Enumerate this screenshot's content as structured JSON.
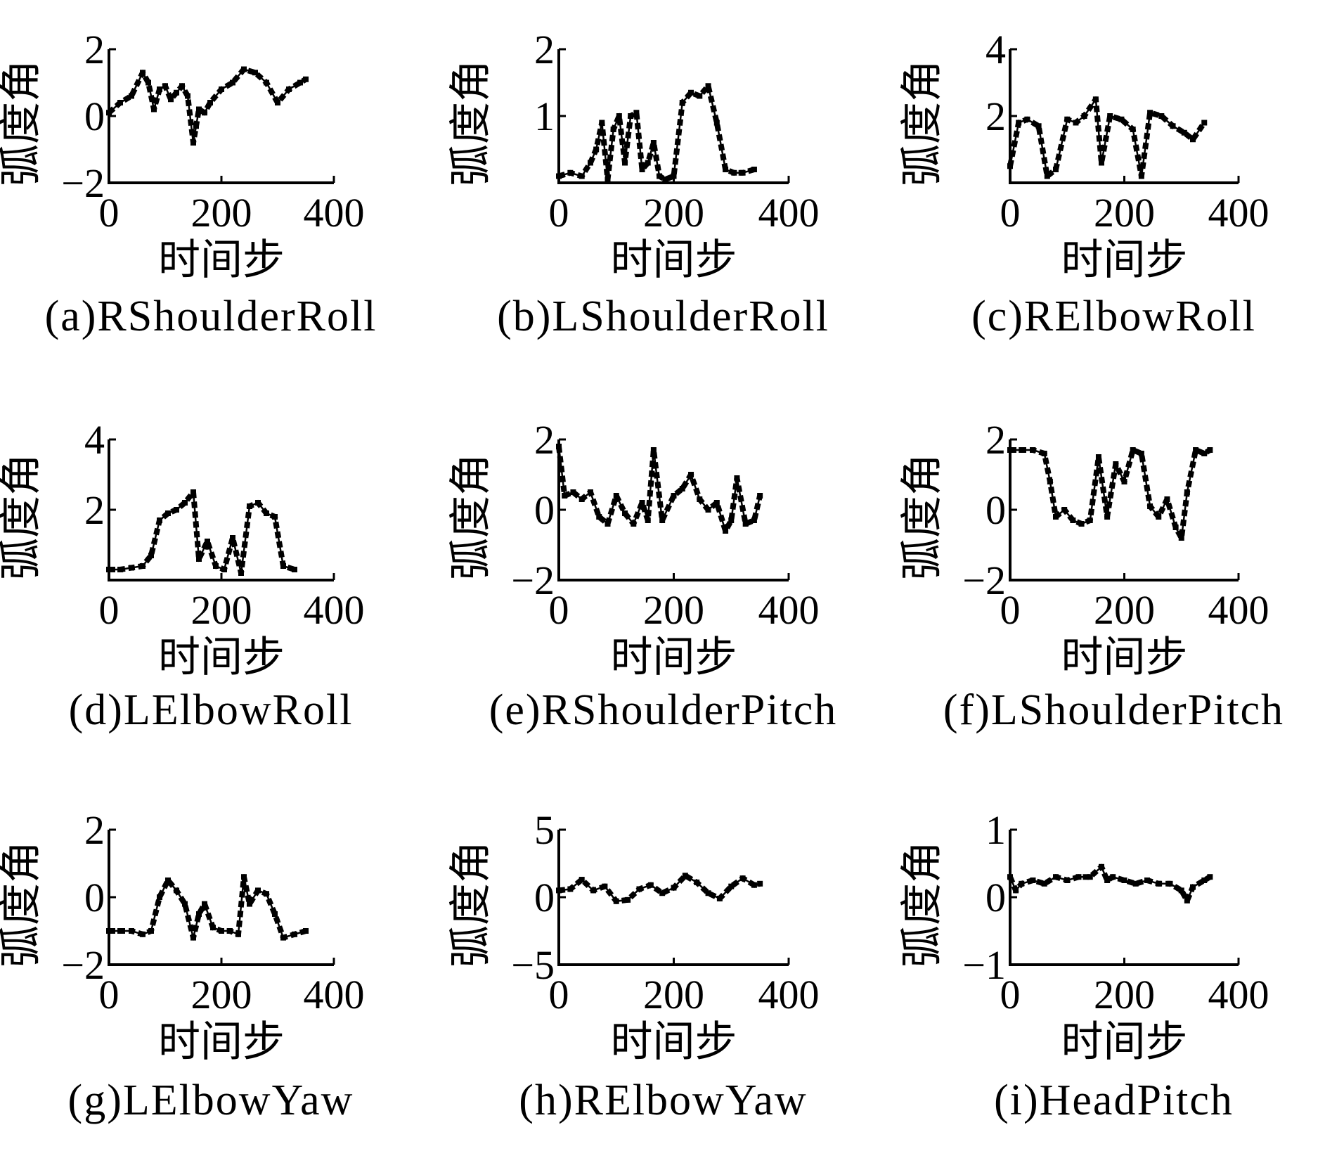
{
  "figure": {
    "ylabel": "弧度角",
    "xlabel": "时间步"
  },
  "chart_data": [
    {
      "type": "line",
      "caption": "(a)RShoulderRoll",
      "xlim": [
        0,
        400
      ],
      "ylim": [
        -2,
        2
      ],
      "xticks": [
        "0",
        "200",
        "400"
      ],
      "yticks": [
        "−2",
        "0",
        "2"
      ],
      "x": [
        0,
        20,
        40,
        60,
        70,
        80,
        90,
        100,
        110,
        120,
        130,
        140,
        150,
        155,
        160,
        170,
        180,
        200,
        220,
        240,
        260,
        280,
        300,
        320,
        340,
        350
      ],
      "series": [
        {
          "values": [
            0.1,
            0.4,
            0.6,
            1.3,
            1.0,
            0.2,
            0.8,
            0.9,
            0.5,
            0.7,
            0.9,
            0.6,
            -0.8,
            -0.3,
            0.2,
            0.1,
            0.4,
            0.8,
            1.0,
            1.4,
            1.3,
            1.0,
            0.4,
            0.8,
            1.0,
            1.1
          ]
        }
      ]
    },
    {
      "type": "line",
      "caption": "(b)LShoulderRoll",
      "xlim": [
        0,
        400
      ],
      "ylim": [
        0,
        2
      ],
      "xticks": [
        "0",
        "200",
        "400"
      ],
      "yticks": [
        "",
        "1",
        "2"
      ],
      "x": [
        0,
        20,
        40,
        55,
        65,
        75,
        85,
        95,
        105,
        115,
        125,
        135,
        145,
        155,
        165,
        175,
        185,
        200,
        215,
        230,
        245,
        260,
        275,
        290,
        305,
        320,
        340
      ],
      "series": [
        {
          "values": [
            0.1,
            0.15,
            0.1,
            0.3,
            0.5,
            0.9,
            0.05,
            0.8,
            1.0,
            0.3,
            1.0,
            1.05,
            0.2,
            0.3,
            0.6,
            0.1,
            0.05,
            0.1,
            1.2,
            1.35,
            1.3,
            1.45,
            0.9,
            0.2,
            0.15,
            0.15,
            0.2
          ]
        }
      ]
    },
    {
      "type": "line",
      "caption": "(c)RElbowRoll",
      "xlim": [
        0,
        400
      ],
      "ylim": [
        0,
        4
      ],
      "xticks": [
        "0",
        "200",
        "400"
      ],
      "yticks": [
        "",
        "2",
        "4"
      ],
      "x": [
        0,
        15,
        30,
        50,
        65,
        80,
        100,
        115,
        130,
        150,
        160,
        175,
        195,
        215,
        230,
        245,
        265,
        285,
        305,
        320,
        340
      ],
      "series": [
        {
          "values": [
            0.5,
            1.8,
            1.9,
            1.7,
            0.2,
            0.4,
            1.9,
            1.8,
            2.0,
            2.5,
            0.6,
            2.0,
            1.9,
            1.6,
            0.2,
            2.1,
            2.0,
            1.7,
            1.5,
            1.3,
            1.8
          ]
        }
      ]
    },
    {
      "type": "line",
      "caption": "(d)LElbowRoll",
      "xlim": [
        0,
        400
      ],
      "ylim": [
        0,
        4
      ],
      "xticks": [
        "0",
        "200",
        "400"
      ],
      "yticks": [
        "",
        "2",
        "4"
      ],
      "x": [
        0,
        20,
        40,
        60,
        75,
        90,
        105,
        120,
        135,
        150,
        160,
        175,
        190,
        205,
        220,
        235,
        250,
        265,
        280,
        295,
        310,
        330
      ],
      "series": [
        {
          "values": [
            0.3,
            0.3,
            0.35,
            0.4,
            0.7,
            1.7,
            1.9,
            2.0,
            2.2,
            2.5,
            0.6,
            1.1,
            0.4,
            0.3,
            1.2,
            0.2,
            2.1,
            2.2,
            1.9,
            1.8,
            0.4,
            0.3
          ]
        }
      ]
    },
    {
      "type": "line",
      "caption": "(e)RShoulderPitch",
      "xlim": [
        0,
        400
      ],
      "ylim": [
        -2,
        2
      ],
      "xticks": [
        "0",
        "200",
        "400"
      ],
      "yticks": [
        "−2",
        "0",
        "2"
      ],
      "x": [
        0,
        10,
        25,
        40,
        55,
        70,
        85,
        100,
        115,
        130,
        145,
        155,
        165,
        180,
        200,
        215,
        230,
        245,
        260,
        275,
        290,
        300,
        310,
        325,
        340,
        350
      ],
      "series": [
        {
          "values": [
            1.8,
            0.4,
            0.5,
            0.3,
            0.5,
            -0.2,
            -0.4,
            0.4,
            -0.1,
            -0.4,
            0.2,
            -0.3,
            1.7,
            -0.3,
            0.4,
            0.6,
            1.0,
            0.3,
            0.0,
            0.2,
            -0.6,
            -0.3,
            0.9,
            -0.4,
            -0.3,
            0.4
          ]
        }
      ]
    },
    {
      "type": "line",
      "caption": "(f)LShoulderPitch",
      "xlim": [
        0,
        400
      ],
      "ylim": [
        -2,
        2
      ],
      "xticks": [
        "0",
        "200",
        "400"
      ],
      "yticks": [
        "−2",
        "0",
        "2"
      ],
      "x": [
        0,
        20,
        40,
        60,
        70,
        80,
        95,
        110,
        125,
        140,
        155,
        170,
        185,
        200,
        215,
        230,
        245,
        260,
        275,
        290,
        300,
        310,
        325,
        340,
        350
      ],
      "series": [
        {
          "values": [
            1.7,
            1.7,
            1.7,
            1.6,
            0.8,
            -0.2,
            0.0,
            -0.3,
            -0.4,
            -0.3,
            1.5,
            -0.2,
            1.3,
            0.8,
            1.7,
            1.6,
            0.1,
            -0.2,
            0.3,
            -0.5,
            -0.8,
            0.5,
            1.7,
            1.6,
            1.7
          ]
        }
      ]
    },
    {
      "type": "line",
      "caption": "(g)LElbowYaw",
      "xlim": [
        0,
        400
      ],
      "ylim": [
        -2,
        2
      ],
      "xticks": [
        "0",
        "200",
        "400"
      ],
      "yticks": [
        "−2",
        "0",
        "2"
      ],
      "x": [
        0,
        20,
        40,
        60,
        75,
        90,
        105,
        120,
        135,
        150,
        160,
        170,
        185,
        200,
        215,
        230,
        240,
        250,
        265,
        280,
        295,
        310,
        330,
        350
      ],
      "series": [
        {
          "values": [
            -1.0,
            -1.0,
            -1.0,
            -1.1,
            -1.0,
            0.0,
            0.5,
            0.2,
            -0.2,
            -1.2,
            -0.5,
            -0.2,
            -0.9,
            -1.0,
            -1.0,
            -1.1,
            0.6,
            -0.2,
            0.2,
            0.1,
            -0.5,
            -1.2,
            -1.1,
            -1.0
          ]
        }
      ]
    },
    {
      "type": "line",
      "caption": "(h)RElbowYaw",
      "xlim": [
        0,
        400
      ],
      "ylim": [
        -5,
        5
      ],
      "xticks": [
        "0",
        "200",
        "400"
      ],
      "yticks": [
        "−5",
        "0",
        "5"
      ],
      "x": [
        0,
        20,
        40,
        60,
        80,
        100,
        120,
        140,
        160,
        180,
        200,
        220,
        240,
        260,
        280,
        300,
        320,
        340,
        350
      ],
      "series": [
        {
          "values": [
            0.5,
            0.6,
            1.3,
            0.5,
            0.8,
            -0.3,
            -0.2,
            0.6,
            0.9,
            0.3,
            0.7,
            1.6,
            1.1,
            0.3,
            -0.1,
            0.8,
            1.4,
            0.9,
            1.0
          ]
        }
      ]
    },
    {
      "type": "line",
      "caption": "(i)HeadPitch",
      "xlim": [
        0,
        400
      ],
      "ylim": [
        -1,
        1
      ],
      "xticks": [
        "0",
        "200",
        "400"
      ],
      "yticks": [
        "−1",
        "0",
        "1"
      ],
      "x": [
        0,
        10,
        20,
        40,
        60,
        80,
        100,
        120,
        140,
        160,
        170,
        180,
        200,
        220,
        240,
        260,
        280,
        300,
        310,
        320,
        340,
        350
      ],
      "series": [
        {
          "values": [
            0.3,
            0.1,
            0.2,
            0.25,
            0.2,
            0.3,
            0.25,
            0.3,
            0.3,
            0.45,
            0.25,
            0.3,
            0.25,
            0.2,
            0.25,
            0.2,
            0.2,
            0.1,
            -0.05,
            0.15,
            0.25,
            0.3
          ]
        }
      ]
    }
  ]
}
